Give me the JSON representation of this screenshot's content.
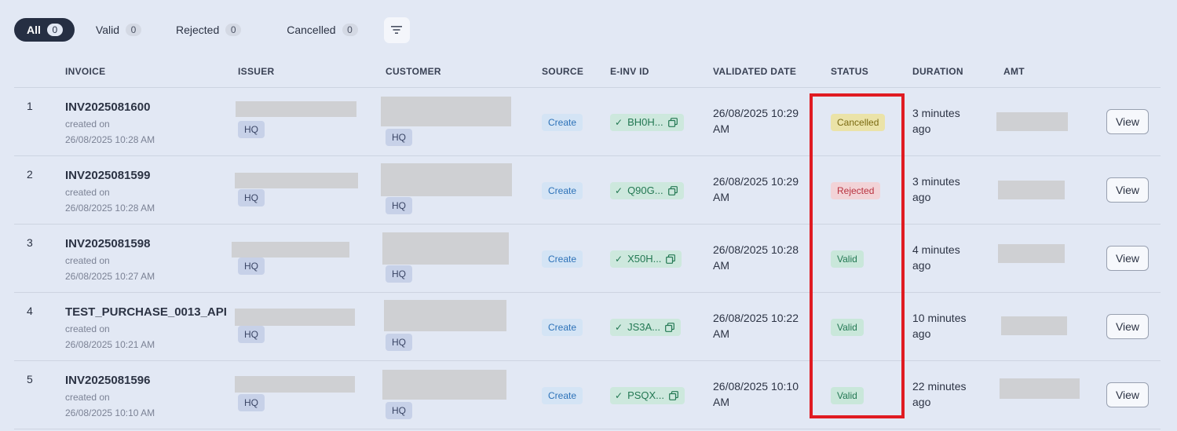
{
  "filters": [
    {
      "label": "All",
      "count": "0",
      "active": true
    },
    {
      "label": "Valid",
      "count": "0",
      "active": false
    },
    {
      "label": "Rejected",
      "count": "0",
      "active": false
    },
    {
      "label": "Cancelled",
      "count": "0",
      "active": false
    }
  ],
  "filter_icon": "filter-icon",
  "columns": {
    "invoice": "INVOICE",
    "issuer": "ISSUER",
    "customer": "CUSTOMER",
    "source": "SOURCE",
    "einv_id": "E-INV ID",
    "validated_date": "VALIDATED DATE",
    "status": "STATUS",
    "duration": "DURATION",
    "amt": "AMT"
  },
  "rows": [
    {
      "num": "1",
      "invoice": "INV2025081600",
      "created_label": "created on",
      "created_date": "26/08/2025 10:28 AM",
      "issuer_tag": "HQ",
      "customer_tag": "HQ",
      "source": "Create",
      "einv_id": "BH0H...",
      "validated_date": "26/08/2025 10:29 AM",
      "status": "Cancelled",
      "duration": "3 minutes ago",
      "action": "View"
    },
    {
      "num": "2",
      "invoice": "INV2025081599",
      "created_label": "created on",
      "created_date": "26/08/2025 10:28 AM",
      "issuer_tag": "HQ",
      "customer_tag": "HQ",
      "source": "Create",
      "einv_id": "Q90G...",
      "validated_date": "26/08/2025 10:29 AM",
      "status": "Rejected",
      "duration": "3 minutes ago",
      "action": "View"
    },
    {
      "num": "3",
      "invoice": "INV2025081598",
      "created_label": "created on",
      "created_date": "26/08/2025 10:27 AM",
      "issuer_tag": "HQ",
      "customer_tag": "HQ",
      "source": "Create",
      "einv_id": "X50H...",
      "validated_date": "26/08/2025 10:28 AM",
      "status": "Valid",
      "duration": "4 minutes ago",
      "action": "View"
    },
    {
      "num": "4",
      "invoice": "TEST_PURCHASE_0013_API",
      "created_label": "created on",
      "created_date": "26/08/2025 10:21 AM",
      "issuer_tag": "HQ",
      "customer_tag": "HQ",
      "source": "Create",
      "einv_id": "JS3A...",
      "validated_date": "26/08/2025 10:22 AM",
      "status": "Valid",
      "duration": "10 minutes ago",
      "action": "View"
    },
    {
      "num": "5",
      "invoice": "INV2025081596",
      "created_label": "created on",
      "created_date": "26/08/2025 10:10 AM",
      "issuer_tag": "HQ",
      "customer_tag": "HQ",
      "source": "Create",
      "einv_id": "PSQX...",
      "validated_date": "26/08/2025 10:10 AM",
      "status": "Valid",
      "duration": "22 minutes ago",
      "action": "View"
    }
  ],
  "status_colors": {
    "Cancelled": {
      "bg": "#ebe3a8",
      "fg": "#7a6a12"
    },
    "Rejected": {
      "bg": "#f2d3d7",
      "fg": "#b8323f"
    },
    "Valid": {
      "bg": "#c9e7da",
      "fg": "#237853"
    }
  },
  "highlight_color": "#e01b22"
}
